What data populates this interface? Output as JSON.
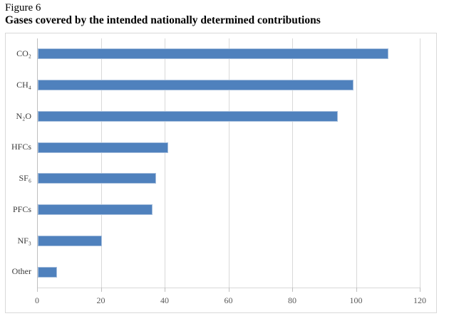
{
  "page": {
    "figure_label": "Figure 6",
    "title": "Gases covered by the intended nationally determined contributions"
  },
  "chart_data": {
    "type": "bar",
    "orientation": "horizontal",
    "title": "Gases covered by the intended nationally determined contributions",
    "categories": [
      "CO₂",
      "CH₄",
      "N₂O",
      "HFCs",
      "SF₆",
      "PFCs",
      "NF₃",
      "Other"
    ],
    "values": [
      110,
      99,
      94,
      41,
      37,
      36,
      20,
      6
    ],
    "x_ticks": [
      0,
      20,
      40,
      60,
      80,
      100,
      120
    ],
    "xlim": [
      0,
      120
    ],
    "xlabel": "",
    "ylabel": "",
    "grid": "vertical",
    "legend": false,
    "bar_color": "#4f81bd",
    "bar_border_color": "#a7bfdd",
    "gridline_color": "#d9d9d9",
    "axis_line_color": "#bfbfbf",
    "tick_label_color": "#595959",
    "category_label_color": "#3a3a3a"
  }
}
